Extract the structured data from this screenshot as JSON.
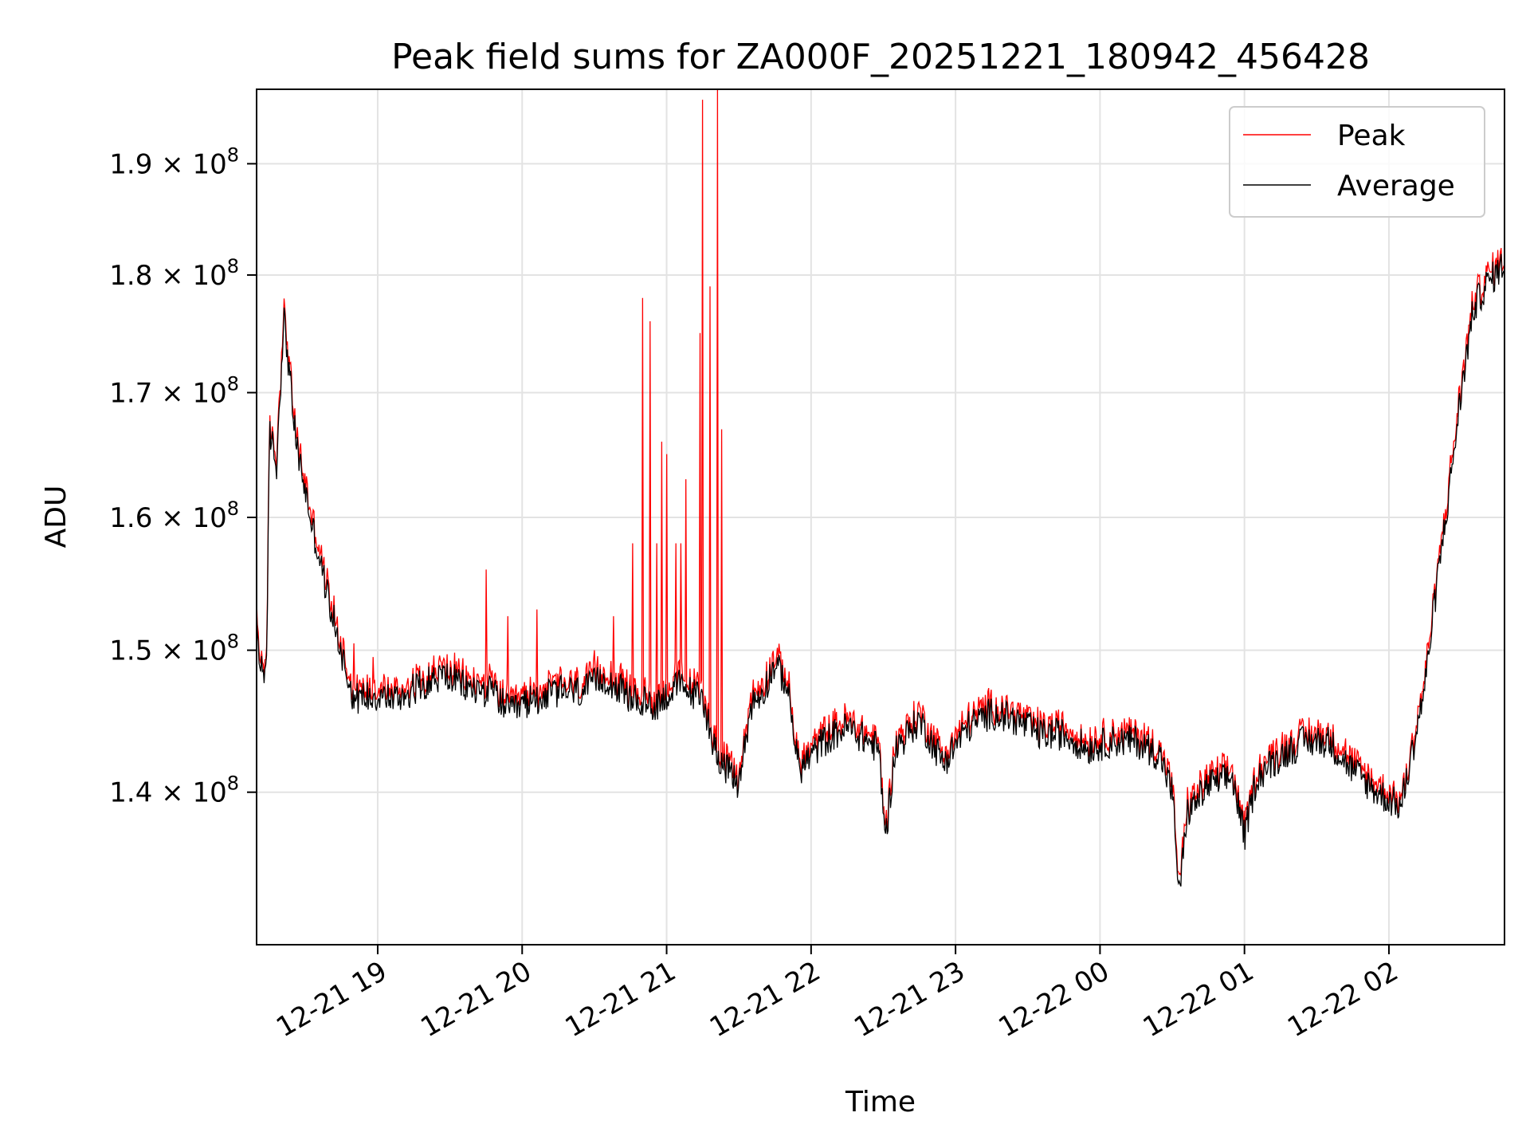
{
  "chart_data": {
    "type": "line",
    "title": "Peak field sums for ZA000F_20251221_180942_456428",
    "xlabel": "Time",
    "ylabel": "ADU",
    "yscale": "log",
    "xlim": [
      "2025-12-21T18:09:42",
      "2025-12-22T02:48:00"
    ],
    "ylim": [
      130000000,
      197000000
    ],
    "grid": true,
    "legend_position": "top-right",
    "x_ticks": [
      {
        "value": "2025-12-21T19:00",
        "label": "12-21 19"
      },
      {
        "value": "2025-12-21T20:00",
        "label": "12-21 20"
      },
      {
        "value": "2025-12-21T21:00",
        "label": "12-21 21"
      },
      {
        "value": "2025-12-21T22:00",
        "label": "12-21 22"
      },
      {
        "value": "2025-12-21T23:00",
        "label": "12-21 23"
      },
      {
        "value": "2025-12-22T00:00",
        "label": "12-22 00"
      },
      {
        "value": "2025-12-22T01:00",
        "label": "12-22 01"
      },
      {
        "value": "2025-12-22T02:00",
        "label": "12-22 02"
      }
    ],
    "y_ticks": [
      {
        "value": 140000000,
        "mantissa": "1.4",
        "exp": "8"
      },
      {
        "value": 150000000,
        "mantissa": "1.5",
        "exp": "8"
      },
      {
        "value": 160000000,
        "mantissa": "1.6",
        "exp": "8"
      },
      {
        "value": 170000000,
        "mantissa": "1.7",
        "exp": "8"
      },
      {
        "value": 180000000,
        "mantissa": "1.8",
        "exp": "8"
      },
      {
        "value": 190000000,
        "mantissa": "1.9",
        "exp": "8"
      }
    ],
    "tick_times_text": "× 10",
    "series": [
      {
        "name": "Average",
        "color": "#000000",
        "points": [
          [
            "2025-12-21T18:09:42",
            152000000
          ],
          [
            "2025-12-21T18:11",
            149000000
          ],
          [
            "2025-12-21T18:14",
            148500000
          ],
          [
            "2025-12-21T18:15",
            167000000
          ],
          [
            "2025-12-21T18:18",
            164000000
          ],
          [
            "2025-12-21T18:21",
            176500000
          ],
          [
            "2025-12-21T18:26",
            166000000
          ],
          [
            "2025-12-21T18:32",
            160000000
          ],
          [
            "2025-12-21T18:38",
            155000000
          ],
          [
            "2025-12-21T18:44",
            150500000
          ],
          [
            "2025-12-21T18:50",
            146500000
          ],
          [
            "2025-12-21T18:58",
            146800000
          ],
          [
            "2025-12-21T19:08",
            146500000
          ],
          [
            "2025-12-21T19:18",
            147500000
          ],
          [
            "2025-12-21T19:28",
            148200000
          ],
          [
            "2025-12-21T19:38",
            147200000
          ],
          [
            "2025-12-21T19:48",
            147000000
          ],
          [
            "2025-12-21T19:55",
            145500000
          ],
          [
            "2025-12-21T20:05",
            146500000
          ],
          [
            "2025-12-21T20:15",
            147000000
          ],
          [
            "2025-12-21T20:25",
            147000000
          ],
          [
            "2025-12-21T20:35",
            148000000
          ],
          [
            "2025-12-21T20:45",
            146500000
          ],
          [
            "2025-12-21T20:55",
            146000000
          ],
          [
            "2025-12-21T21:05",
            147500000
          ],
          [
            "2025-12-21T21:15",
            146500000
          ],
          [
            "2025-12-21T21:20",
            143000000
          ],
          [
            "2025-12-21T21:25",
            141500000
          ],
          [
            "2025-12-21T21:30",
            140500000
          ],
          [
            "2025-12-21T21:35",
            146000000
          ],
          [
            "2025-12-21T21:40",
            147000000
          ],
          [
            "2025-12-21T21:45",
            149000000
          ],
          [
            "2025-12-21T21:50",
            147500000
          ],
          [
            "2025-12-21T21:55",
            141500000
          ],
          [
            "2025-12-21T22:05",
            143500000
          ],
          [
            "2025-12-21T22:15",
            144500000
          ],
          [
            "2025-12-21T22:28",
            143000000
          ],
          [
            "2025-12-21T22:31",
            137000000
          ],
          [
            "2025-12-21T22:35",
            143000000
          ],
          [
            "2025-12-21T22:45",
            145000000
          ],
          [
            "2025-12-21T22:55",
            142000000
          ],
          [
            "2025-12-21T23:05",
            144500000
          ],
          [
            "2025-12-21T23:15",
            145500000
          ],
          [
            "2025-12-21T23:25",
            145000000
          ],
          [
            "2025-12-21T23:35",
            144000000
          ],
          [
            "2025-12-21T23:45",
            144000000
          ],
          [
            "2025-12-21T23:55",
            143000000
          ],
          [
            "2025-12-22T00:05",
            143500000
          ],
          [
            "2025-12-22T00:15",
            143500000
          ],
          [
            "2025-12-22T00:25",
            142500000
          ],
          [
            "2025-12-22T00:30",
            140000000
          ],
          [
            "2025-12-22T00:33",
            133000000
          ],
          [
            "2025-12-22T00:36",
            138500000
          ],
          [
            "2025-12-22T00:45",
            140500000
          ],
          [
            "2025-12-22T00:55",
            141000000
          ],
          [
            "2025-12-22T01:00",
            137000000
          ],
          [
            "2025-12-22T01:05",
            141000000
          ],
          [
            "2025-12-22T01:15",
            142500000
          ],
          [
            "2025-12-22T01:25",
            143500000
          ],
          [
            "2025-12-22T01:35",
            143500000
          ],
          [
            "2025-12-22T01:45",
            141500000
          ],
          [
            "2025-12-22T01:55",
            140000000
          ],
          [
            "2025-12-22T02:05",
            139000000
          ],
          [
            "2025-12-22T02:10",
            143000000
          ],
          [
            "2025-12-22T02:15",
            147500000
          ],
          [
            "2025-12-22T02:20",
            155000000
          ],
          [
            "2025-12-22T02:25",
            162000000
          ],
          [
            "2025-12-22T02:30",
            170000000
          ],
          [
            "2025-12-22T02:35",
            177000000
          ],
          [
            "2025-12-22T02:40",
            179000000
          ],
          [
            "2025-12-22T02:48",
            181000000
          ]
        ]
      },
      {
        "name": "Peak",
        "color": "#ff0000",
        "spikes": [
          [
            "2025-12-21T18:50",
            150500000
          ],
          [
            "2025-12-21T18:58",
            149500000
          ],
          [
            "2025-12-21T19:45",
            156000000
          ],
          [
            "2025-12-21T19:54",
            152500000
          ],
          [
            "2025-12-21T20:06",
            153000000
          ],
          [
            "2025-12-21T20:30",
            150000000
          ],
          [
            "2025-12-21T20:38",
            152500000
          ],
          [
            "2025-12-21T20:46",
            158000000
          ],
          [
            "2025-12-21T20:50",
            178000000
          ],
          [
            "2025-12-21T20:53",
            176000000
          ],
          [
            "2025-12-21T20:56",
            158000000
          ],
          [
            "2025-12-21T20:58",
            166000000
          ],
          [
            "2025-12-21T21:00",
            165000000
          ],
          [
            "2025-12-21T21:04",
            158000000
          ],
          [
            "2025-12-21T21:06",
            158000000
          ],
          [
            "2025-12-21T21:08",
            163000000
          ],
          [
            "2025-12-21T21:14",
            175000000
          ],
          [
            "2025-12-21T21:15",
            196000000
          ],
          [
            "2025-12-21T21:18",
            179000000
          ],
          [
            "2025-12-21T21:21",
            197000000
          ],
          [
            "2025-12-21T21:23",
            167000000
          ]
        ]
      }
    ]
  }
}
